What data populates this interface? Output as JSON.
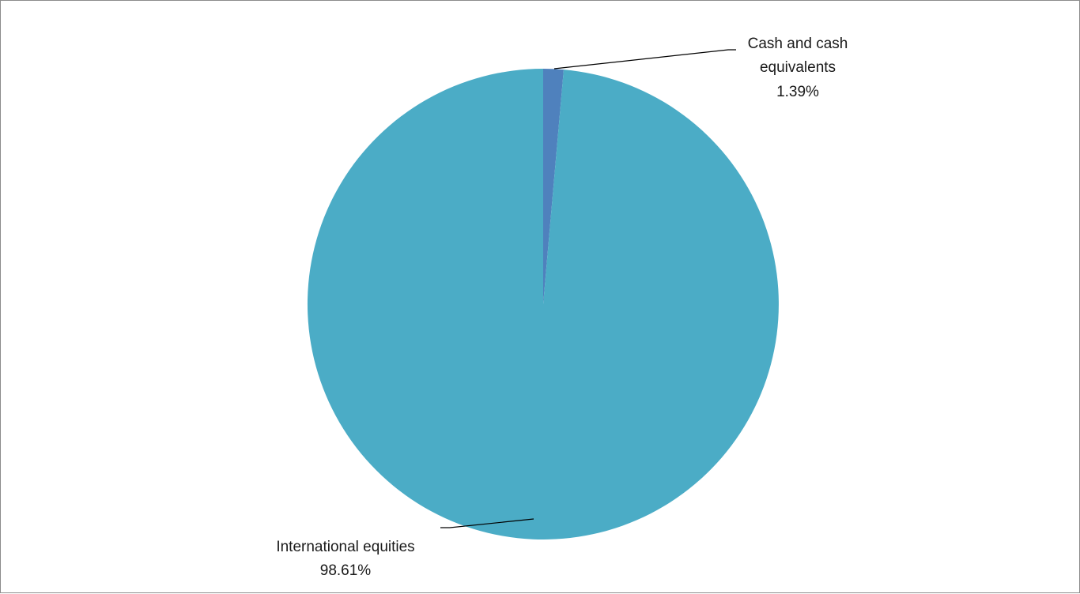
{
  "chart_data": {
    "type": "pie",
    "title": "",
    "slices": [
      {
        "label_line1": "Cash and cash",
        "label_line2": "equivalents",
        "percent_text": "1.39%",
        "value": 1.39,
        "color": "#4f81bd"
      },
      {
        "label_line1": "International equities",
        "label_line2": "",
        "percent_text": "98.61%",
        "value": 98.61,
        "color": "#4bacc6"
      }
    ],
    "legend": "none"
  }
}
